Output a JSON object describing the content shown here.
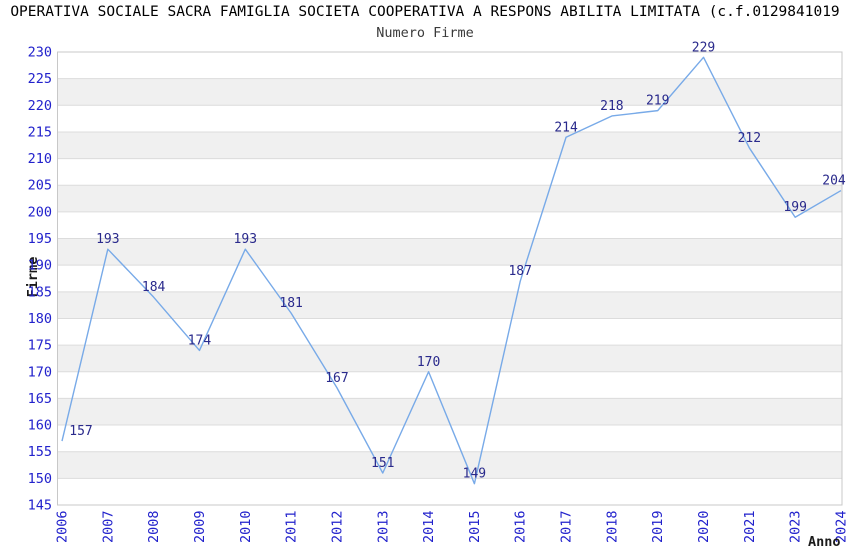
{
  "title": "OPERATIVA SOCIALE SACRA FAMIGLIA SOCIETA COOPERATIVA A RESPONS ABILITA LIMITATA (c.f.0129841019",
  "subtitle": "Numero Firme",
  "chart_data": {
    "type": "line",
    "title": "Numero Firme",
    "xlabel": "Anno",
    "ylabel": "Firme",
    "categories": [
      "2006",
      "2007",
      "2008",
      "2009",
      "2010",
      "2011",
      "2012",
      "2013",
      "2014",
      "2015",
      "2016",
      "2017",
      "2018",
      "2019",
      "2020",
      "2021",
      "2023",
      "2024"
    ],
    "values": [
      157,
      193,
      184,
      174,
      193,
      181,
      167,
      151,
      170,
      149,
      187,
      214,
      218,
      219,
      229,
      212,
      199,
      204
    ],
    "ylim": [
      145,
      230
    ],
    "yticks": [
      145,
      150,
      155,
      160,
      165,
      170,
      175,
      180,
      185,
      190,
      195,
      200,
      205,
      210,
      215,
      220,
      225,
      230
    ],
    "grid": "horizontal-gridlines-with-alternating-bands",
    "legend": "none",
    "colors": {
      "line": "#78AAE8",
      "tick_label": "#2222CC",
      "point_label": "#2A2A8C",
      "band": "#F0F0F0",
      "gridline": "#DCDCDC",
      "plot_border": "#C8C8C8",
      "title": "#000000",
      "subtitle": "#3A3A3A",
      "axis_title": "#1A1A1A",
      "background": "#FFFFFF"
    }
  }
}
